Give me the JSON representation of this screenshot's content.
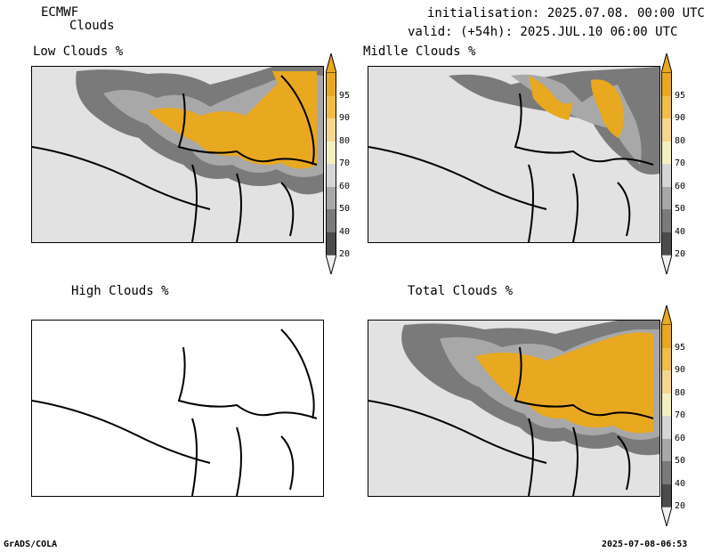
{
  "header": {
    "model": "ECMWF",
    "product": "Clouds",
    "init": "initialisation: 2025.07.08. 00:00 UTC",
    "valid": "valid: (+54h): 2025.JUL.10 06:00 UTC"
  },
  "panels": {
    "low": "Low Clouds %",
    "mid": "Midlle Clouds %",
    "high": "High Clouds %",
    "total": "Total Clouds %"
  },
  "colorbar": {
    "labels": [
      "95",
      "90",
      "80",
      "70",
      "60",
      "50",
      "40",
      "20"
    ],
    "colors": [
      "#e8a820",
      "#f0be48",
      "#f5d890",
      "#f5f0c0",
      "#d6d6d6",
      "#a8a8a8",
      "#7a7a7a",
      "#4c4c4c"
    ],
    "tip_top": "#e8a820",
    "tip_bottom": "#f0f0f0"
  },
  "colors": {
    "background": "#e2e2e2",
    "border": "#000000"
  },
  "footer": {
    "left": "GrADS/COLA",
    "right": "2025-07-08-06:53"
  }
}
